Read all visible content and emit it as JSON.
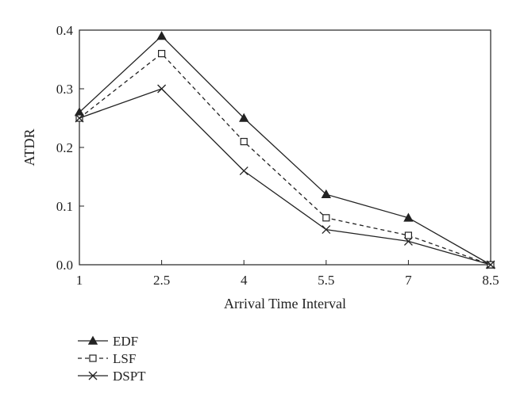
{
  "chart_data": {
    "type": "line",
    "title": "",
    "xlabel": "Arrival Time Interval",
    "ylabel": "ATDR",
    "x": [
      1,
      2.5,
      4,
      5.5,
      7,
      8.5
    ],
    "x_tick_labels": [
      "1",
      "2.5",
      "4",
      "5.5",
      "7",
      "8.5"
    ],
    "y_tick_labels": [
      "0.0",
      "0.1",
      "0.2",
      "0.3",
      "0.4"
    ],
    "xlim": [
      1,
      8.5
    ],
    "ylim": [
      0,
      0.4
    ],
    "y_ticks": [
      0,
      0.1,
      0.2,
      0.3,
      0.4
    ],
    "grid": false,
    "legend_position": "bottom-left, below plot",
    "series": [
      {
        "name": "EDF",
        "values": [
          0.26,
          0.39,
          0.25,
          0.12,
          0.08,
          0.0
        ],
        "marker": "filled-triangle",
        "line_style": "solid",
        "color": "#222222"
      },
      {
        "name": "LSF",
        "values": [
          0.25,
          0.36,
          0.21,
          0.08,
          0.05,
          0.0
        ],
        "marker": "open-square",
        "line_style": "dashed",
        "color": "#222222"
      },
      {
        "name": "DSPT",
        "values": [
          0.25,
          0.3,
          0.16,
          0.06,
          0.04,
          0.0
        ],
        "marker": "cross",
        "line_style": "solid",
        "color": "#222222"
      }
    ]
  }
}
